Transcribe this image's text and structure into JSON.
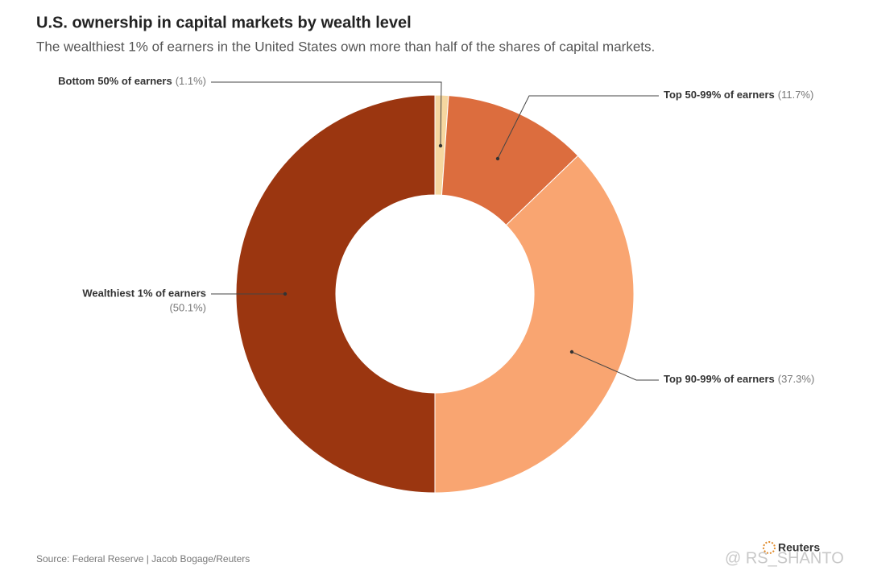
{
  "chart_data": {
    "type": "donut",
    "title": "U.S. ownership in capital markets by wealth level",
    "subtitle": "The wealthiest 1% of earners in the United States own more than half of the shares of capital markets.",
    "categories": [
      "Bottom 50% of earners",
      "Top 50-99% of earners",
      "Top 90-99% of earners",
      "Wealthiest 1% of earners"
    ],
    "values": [
      1.1,
      11.7,
      37.3,
      50.1
    ],
    "value_labels": [
      "(1.1%)",
      "(11.7%)",
      "(37.3%)",
      "(50.1%)"
    ],
    "colors": [
      "#f6d7a0",
      "#dc6d3e",
      "#f9a571",
      "#9b3610"
    ],
    "source": "Source: Federal Reserve | Jacob Bogage/Reuters",
    "logo": "Reuters",
    "watermark": "@ RS_SHANTO"
  }
}
